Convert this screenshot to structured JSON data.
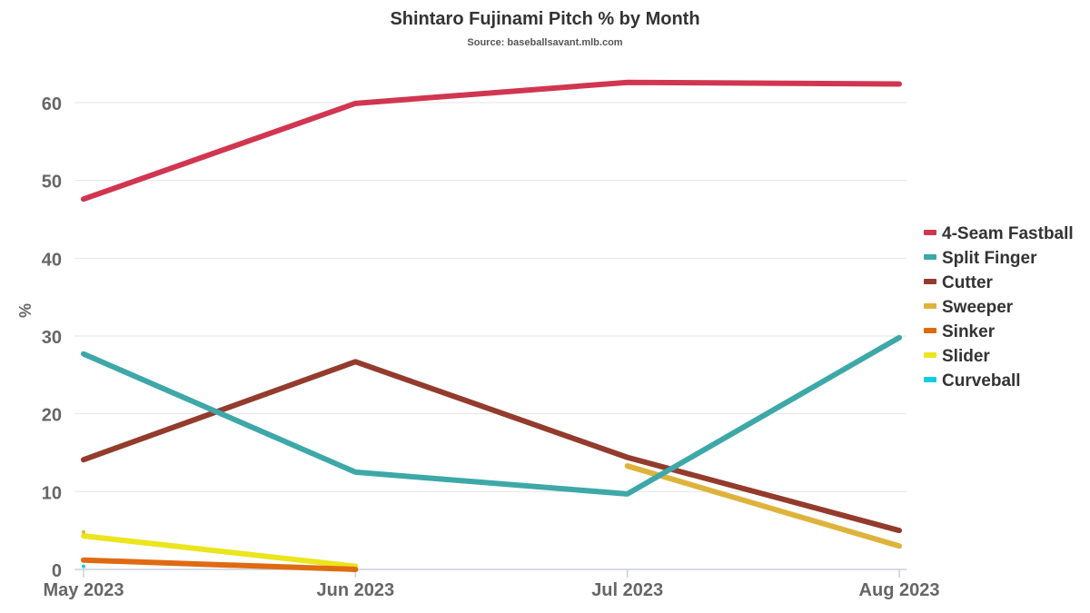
{
  "chart_data": {
    "type": "line",
    "title": "Shintaro Fujinami Pitch % by Month",
    "subtitle": "Source: baseballsavant.mlb.com",
    "xlabel": "",
    "ylabel": "%",
    "categories": [
      "May 2023",
      "Jun 2023",
      "Jul 2023",
      "Aug 2023"
    ],
    "ylim": [
      0,
      65
    ],
    "yticks": [
      0,
      10,
      20,
      30,
      40,
      50,
      60
    ],
    "grid": true,
    "legend_position": "right",
    "series": [
      {
        "name": "4-Seam Fastball",
        "color": "#d13651",
        "values": [
          47.6,
          59.9,
          62.6,
          62.4
        ]
      },
      {
        "name": "Split Finger",
        "color": "#3ea8a8",
        "values": [
          27.7,
          12.5,
          9.7,
          29.8
        ]
      },
      {
        "name": "Cutter",
        "color": "#933b2c",
        "values": [
          14.1,
          26.7,
          14.4,
          5.0
        ]
      },
      {
        "name": "Sweeper",
        "color": "#deb33c",
        "values": [
          4.8,
          null,
          13.3,
          3.0
        ]
      },
      {
        "name": "Sinker",
        "color": "#e06a12",
        "values": [
          1.2,
          0.0,
          null,
          null
        ]
      },
      {
        "name": "Slider",
        "color": "#eae51d",
        "values": [
          4.3,
          0.4,
          null,
          null
        ]
      },
      {
        "name": "Curveball",
        "color": "#12cde0",
        "values": [
          0.4,
          null,
          null,
          null
        ]
      }
    ]
  }
}
